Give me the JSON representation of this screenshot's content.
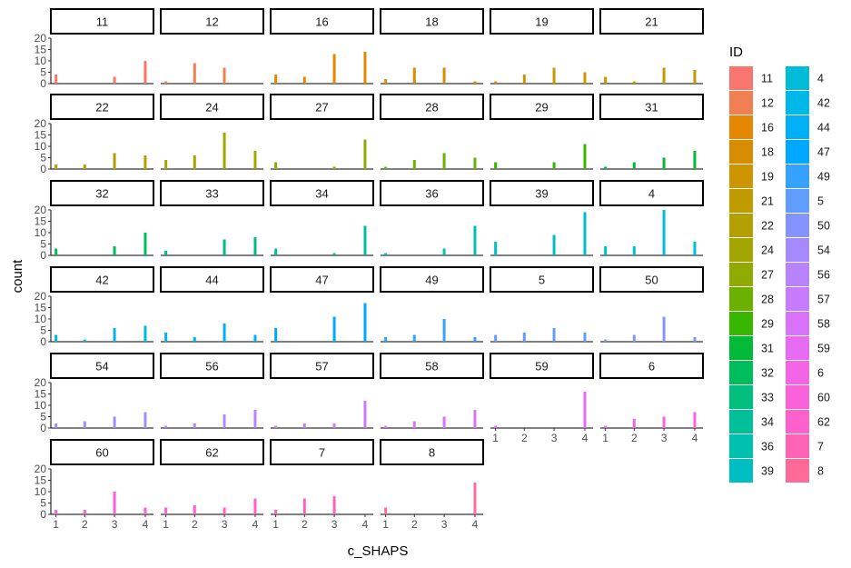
{
  "chart_data": {
    "type": "bar",
    "xlabel": "c_SHAPS",
    "ylabel": "count",
    "x_ticks": [
      "1",
      "2",
      "3",
      "4"
    ],
    "y_ticks": [
      0,
      5,
      10,
      15,
      20
    ],
    "ylim": [
      0,
      20
    ],
    "grid": false,
    "legend": {
      "title": "ID",
      "position": "right",
      "columns": 2
    },
    "panels": [
      {
        "id": "11",
        "color": "#F8766D",
        "values": [
          4,
          0,
          3,
          10
        ]
      },
      {
        "id": "12",
        "color": "#F07F53",
        "values": [
          1,
          9,
          7,
          0
        ]
      },
      {
        "id": "16",
        "color": "#E58700",
        "values": [
          4,
          3,
          13,
          14
        ]
      },
      {
        "id": "18",
        "color": "#D98C00",
        "values": [
          2,
          7,
          7,
          1
        ]
      },
      {
        "id": "19",
        "color": "#CD9600",
        "values": [
          1,
          4,
          7,
          5
        ]
      },
      {
        "id": "21",
        "color": "#C09B00",
        "values": [
          3,
          1,
          7,
          6
        ]
      },
      {
        "id": "22",
        "color": "#B3A000",
        "values": [
          2,
          2,
          7,
          6
        ]
      },
      {
        "id": "24",
        "color": "#A3A500",
        "values": [
          4,
          6,
          16,
          8
        ]
      },
      {
        "id": "27",
        "color": "#8FAA00",
        "values": [
          3,
          0,
          1,
          13
        ]
      },
      {
        "id": "28",
        "color": "#6BB100",
        "values": [
          1,
          4,
          7,
          5
        ]
      },
      {
        "id": "29",
        "color": "#39B600",
        "values": [
          3,
          0,
          3,
          11
        ]
      },
      {
        "id": "31",
        "color": "#00BA38",
        "values": [
          1,
          3,
          5,
          8
        ]
      },
      {
        "id": "32",
        "color": "#00BD5C",
        "values": [
          3,
          0,
          4,
          10
        ]
      },
      {
        "id": "33",
        "color": "#00BF7D",
        "values": [
          2,
          0,
          7,
          8
        ]
      },
      {
        "id": "34",
        "color": "#00C097",
        "values": [
          3,
          0,
          1,
          13
        ]
      },
      {
        "id": "36",
        "color": "#00C0AF",
        "values": [
          1,
          0,
          3,
          13
        ]
      },
      {
        "id": "39",
        "color": "#00BFC4",
        "values": [
          6,
          0,
          9,
          19
        ]
      },
      {
        "id": "4",
        "color": "#00BCD8",
        "values": [
          4,
          4,
          20,
          6
        ]
      },
      {
        "id": "42",
        "color": "#00B8E7",
        "values": [
          3,
          1,
          6,
          7
        ]
      },
      {
        "id": "44",
        "color": "#00B0F6",
        "values": [
          4,
          2,
          8,
          3
        ]
      },
      {
        "id": "47",
        "color": "#00A9FF",
        "values": [
          6,
          0,
          11,
          17
        ]
      },
      {
        "id": "49",
        "color": "#35A2FF",
        "values": [
          2,
          3,
          10,
          2
        ]
      },
      {
        "id": "5",
        "color": "#619CFF",
        "values": [
          3,
          4,
          6,
          4
        ]
      },
      {
        "id": "50",
        "color": "#8494FF",
        "values": [
          1,
          3,
          11,
          2
        ]
      },
      {
        "id": "54",
        "color": "#A58AFF",
        "values": [
          2,
          3,
          5,
          7
        ]
      },
      {
        "id": "56",
        "color": "#B983FF",
        "values": [
          1,
          2,
          6,
          8
        ]
      },
      {
        "id": "57",
        "color": "#C77CFF",
        "values": [
          1,
          2,
          2,
          12
        ]
      },
      {
        "id": "58",
        "color": "#DB72FB",
        "values": [
          1,
          3,
          5,
          8
        ]
      },
      {
        "id": "59",
        "color": "#E76BF3",
        "values": [
          1,
          0,
          0,
          16
        ]
      },
      {
        "id": "6",
        "color": "#F365E6",
        "values": [
          1,
          4,
          5,
          7
        ]
      },
      {
        "id": "60",
        "color": "#FA62DB",
        "values": [
          2,
          2,
          10,
          3
        ]
      },
      {
        "id": "62",
        "color": "#FF61CC",
        "values": [
          3,
          4,
          3,
          7
        ]
      },
      {
        "id": "7",
        "color": "#FF63B6",
        "values": [
          2,
          7,
          8,
          0
        ]
      },
      {
        "id": "8",
        "color": "#FF6A98",
        "values": [
          3,
          0,
          0,
          14
        ]
      }
    ]
  }
}
